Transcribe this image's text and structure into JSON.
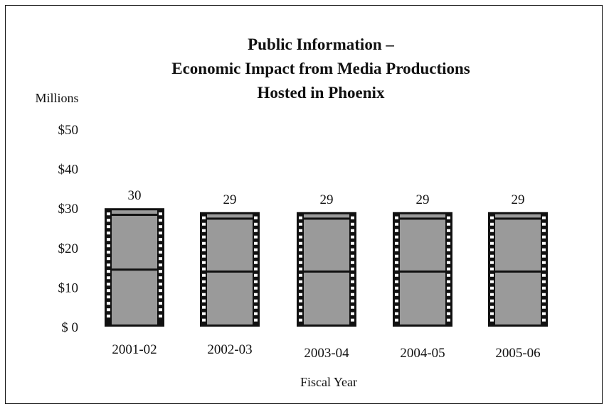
{
  "chart_data": {
    "type": "bar",
    "title": [
      "Public Information –",
      "Economic Impact from Media Productions",
      "Hosted in Phoenix"
    ],
    "ylabel": "Millions",
    "xlabel": "Fiscal Year",
    "categories": [
      "2001-02",
      "2002-03",
      "2003-04",
      "2004-05",
      "2005-06"
    ],
    "values": [
      30,
      29,
      29,
      29,
      29
    ],
    "data_labels": [
      "30",
      "29",
      "29",
      "29",
      "29"
    ],
    "yticks": [
      0,
      10,
      20,
      30,
      40,
      50
    ],
    "ytick_labels": [
      "$ 0",
      "$10",
      "$20",
      "$30",
      "$40",
      "$50"
    ],
    "ylim": [
      0,
      50
    ],
    "grid": false,
    "legend": "none",
    "bar_style": "film-strip",
    "colors": {
      "bar_fill": "#9a9a9a",
      "film_edge": "#111111",
      "sprocket": "#ffffff",
      "text": "#111111"
    }
  }
}
